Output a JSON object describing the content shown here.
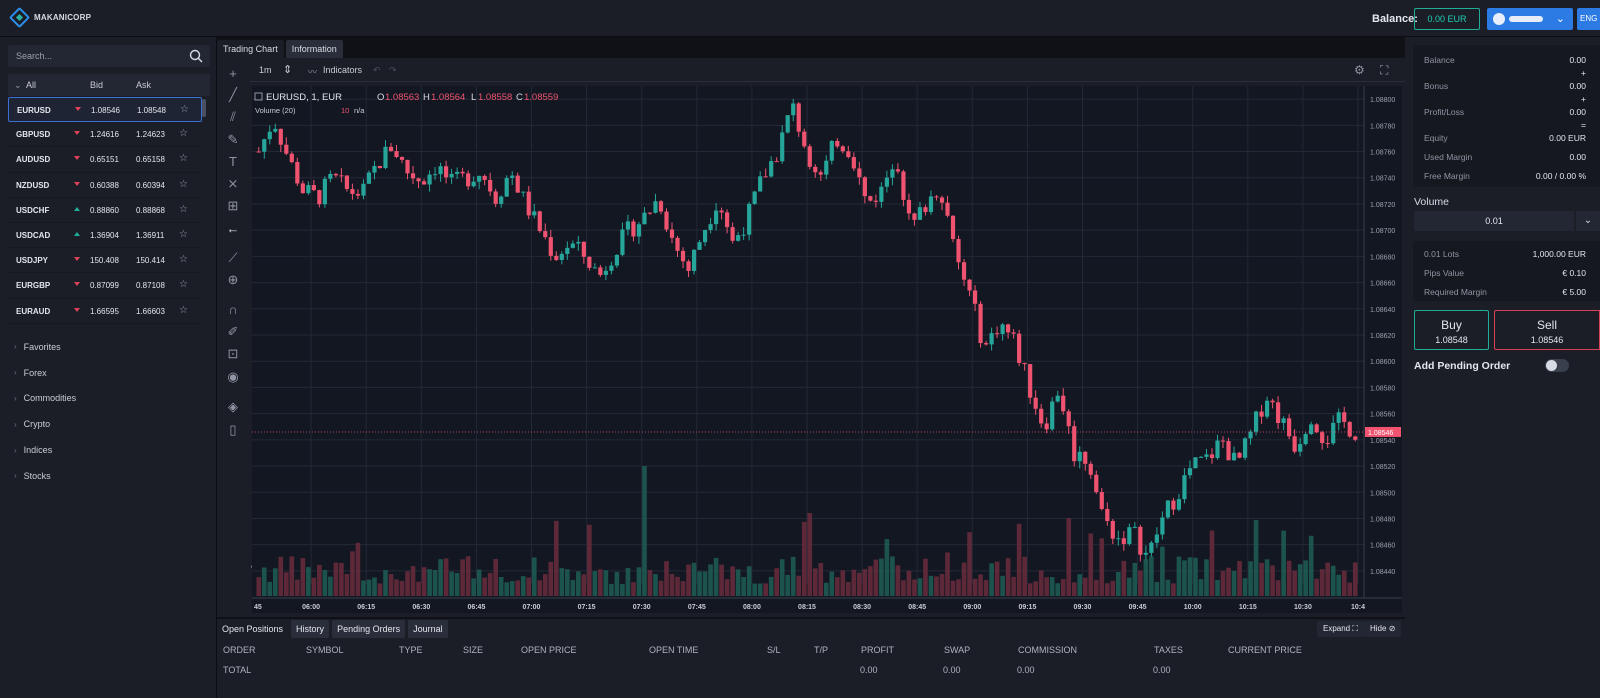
{
  "brand": "MAKANICORP",
  "header": {
    "balance_label": "Balance:",
    "balance_value": "0.00 EUR",
    "lang": "ENG"
  },
  "search": {
    "placeholder": "Search..."
  },
  "watch": {
    "headers": {
      "all": "All",
      "bid": "Bid",
      "ask": "Ask"
    },
    "rows": [
      {
        "symbol": "EURUSD",
        "dir": "down",
        "bid": "1.08546",
        "ask": "1.08548"
      },
      {
        "symbol": "GBPUSD",
        "dir": "down",
        "bid": "1.24616",
        "ask": "1.24623"
      },
      {
        "symbol": "AUDUSD",
        "dir": "down",
        "bid": "0.65151",
        "ask": "0.65158"
      },
      {
        "symbol": "NZDUSD",
        "dir": "down",
        "bid": "0.60388",
        "ask": "0.60394"
      },
      {
        "symbol": "USDCHF",
        "dir": "up",
        "bid": "0.88860",
        "ask": "0.88868"
      },
      {
        "symbol": "USDCAD",
        "dir": "up",
        "bid": "1.36904",
        "ask": "1.36911"
      },
      {
        "symbol": "USDJPY",
        "dir": "down",
        "bid": "150.408",
        "ask": "150.414"
      },
      {
        "symbol": "EURGBP",
        "dir": "down",
        "bid": "0.87099",
        "ask": "0.87108"
      },
      {
        "symbol": "EURAUD",
        "dir": "down",
        "bid": "1.66595",
        "ask": "1.66603"
      }
    ],
    "categories": [
      "Favorites",
      "Forex",
      "Commodities",
      "Crypto",
      "Indices",
      "Stocks"
    ]
  },
  "chart_tabs": [
    "Trading Chart",
    "Information"
  ],
  "toolbar": {
    "interval": "1m",
    "indicators": "Indicators"
  },
  "chart_data": {
    "type": "candlestick",
    "legend": {
      "symbol": "EURUSD, 1, EUR",
      "o_label": "O",
      "o": "1.08563",
      "h_label": "H",
      "h": "1.08564",
      "l_label": "L",
      "l": "1.08558",
      "c_label": "C",
      "c": "1.08559"
    },
    "volume_legend": {
      "label": "Volume (20)",
      "val": "10",
      "na": "n/a"
    },
    "y_ticks": [
      "1.08800",
      "1.08780",
      "1.08760",
      "1.08740",
      "1.08720",
      "1.08700",
      "1.08680",
      "1.08660",
      "1.08640",
      "1.08620",
      "1.08600",
      "1.08580",
      "1.08560",
      "1.08540",
      "1.08520",
      "1.08500",
      "1.08480",
      "1.08460",
      "1.08440"
    ],
    "ylim": [
      1.0843,
      1.0881
    ],
    "x_ticks": [
      "45",
      "06:00",
      "06:15",
      "06:30",
      "06:45",
      "07:00",
      "07:15",
      "07:30",
      "07:45",
      "08:00",
      "08:15",
      "08:30",
      "08:45",
      "09:00",
      "09:15",
      "09:30",
      "09:45",
      "10:00",
      "10:15",
      "10:30",
      "10:4"
    ],
    "price_label": "1.08546",
    "price_value": 1.08546,
    "close_path": [
      1.0876,
      1.08785,
      1.08755,
      1.0873,
      1.08725,
      1.0874,
      1.0873,
      1.08728,
      1.0875,
      1.08765,
      1.08745,
      1.08738,
      1.0875,
      1.08735,
      1.0874,
      1.08745,
      1.08725,
      1.08745,
      1.0872,
      1.087,
      1.0868,
      1.0869,
      1.0868,
      1.08665,
      1.08685,
      1.087,
      1.0871,
      1.08725,
      1.0869,
      1.0867,
      1.087,
      1.08725,
      1.0869,
      1.0871,
      1.0874,
      1.0876,
      1.08795,
      1.0876,
      1.0874,
      1.0877,
      1.0876,
      1.0872,
      1.0873,
      1.0876,
      1.087,
      1.0872,
      1.08735,
      1.0868,
      1.0865,
      1.0861,
      1.0863,
      1.08615,
      1.0858,
      1.0855,
      1.0858,
      1.0853,
      1.08525,
      1.0848,
      1.08465,
      1.0847,
      1.0845,
      1.0848,
      1.085,
      1.0852,
      1.08525,
      1.0854,
      1.0852,
      1.08545,
      1.08575,
      1.08555,
      1.08535,
      1.0856,
      1.0854,
      1.08555,
      1.08546
    ]
  },
  "bottom": {
    "tabs": [
      "Open Positions",
      "History",
      "Pending Orders",
      "Journal"
    ],
    "expand": "Expand",
    "hide": "Hide",
    "cols": [
      "ORDER",
      "SYMBOL",
      "TYPE",
      "SIZE",
      "OPEN PRICE",
      "OPEN TIME",
      "S/L",
      "T/P",
      "PROFIT",
      "SWAP",
      "COMMISSION",
      "TAXES",
      "CURRENT PRICE"
    ],
    "total": {
      "label": "TOTAL",
      "profit": "0.00",
      "swap": "0.00",
      "commission": "0.00",
      "taxes": "0.00"
    }
  },
  "account": {
    "balance_l": "Balance",
    "balance_v": "0.00",
    "bonus_l": "Bonus",
    "bonus_v": "0.00",
    "pl_l": "Profit/Loss",
    "pl_v": "0.00",
    "equity_l": "Equity",
    "equity_v": "0.00 EUR",
    "used_l": "Used Margin",
    "used_v": "0.00",
    "free_l": "Free Margin",
    "free_v": "0.00 / 0.00 %",
    "plus": "+",
    "eq": "="
  },
  "volume": {
    "label": "Volume",
    "value": "0.01"
  },
  "lots": {
    "lots_l": "0.01 Lots",
    "lots_v": "1,000.00 EUR",
    "pip_l": "Pips Value",
    "pip_v": "€ 0.10",
    "req_l": "Required Margin",
    "req_v": "€ 5.00"
  },
  "trade": {
    "buy": "Buy",
    "buy_price": "1.08548",
    "sell": "Sell",
    "sell_price": "1.08546",
    "pending": "Add Pending Order"
  },
  "colors": {
    "up": "#26a69a",
    "down": "#ef5370",
    "accent": "#2c7be5"
  }
}
